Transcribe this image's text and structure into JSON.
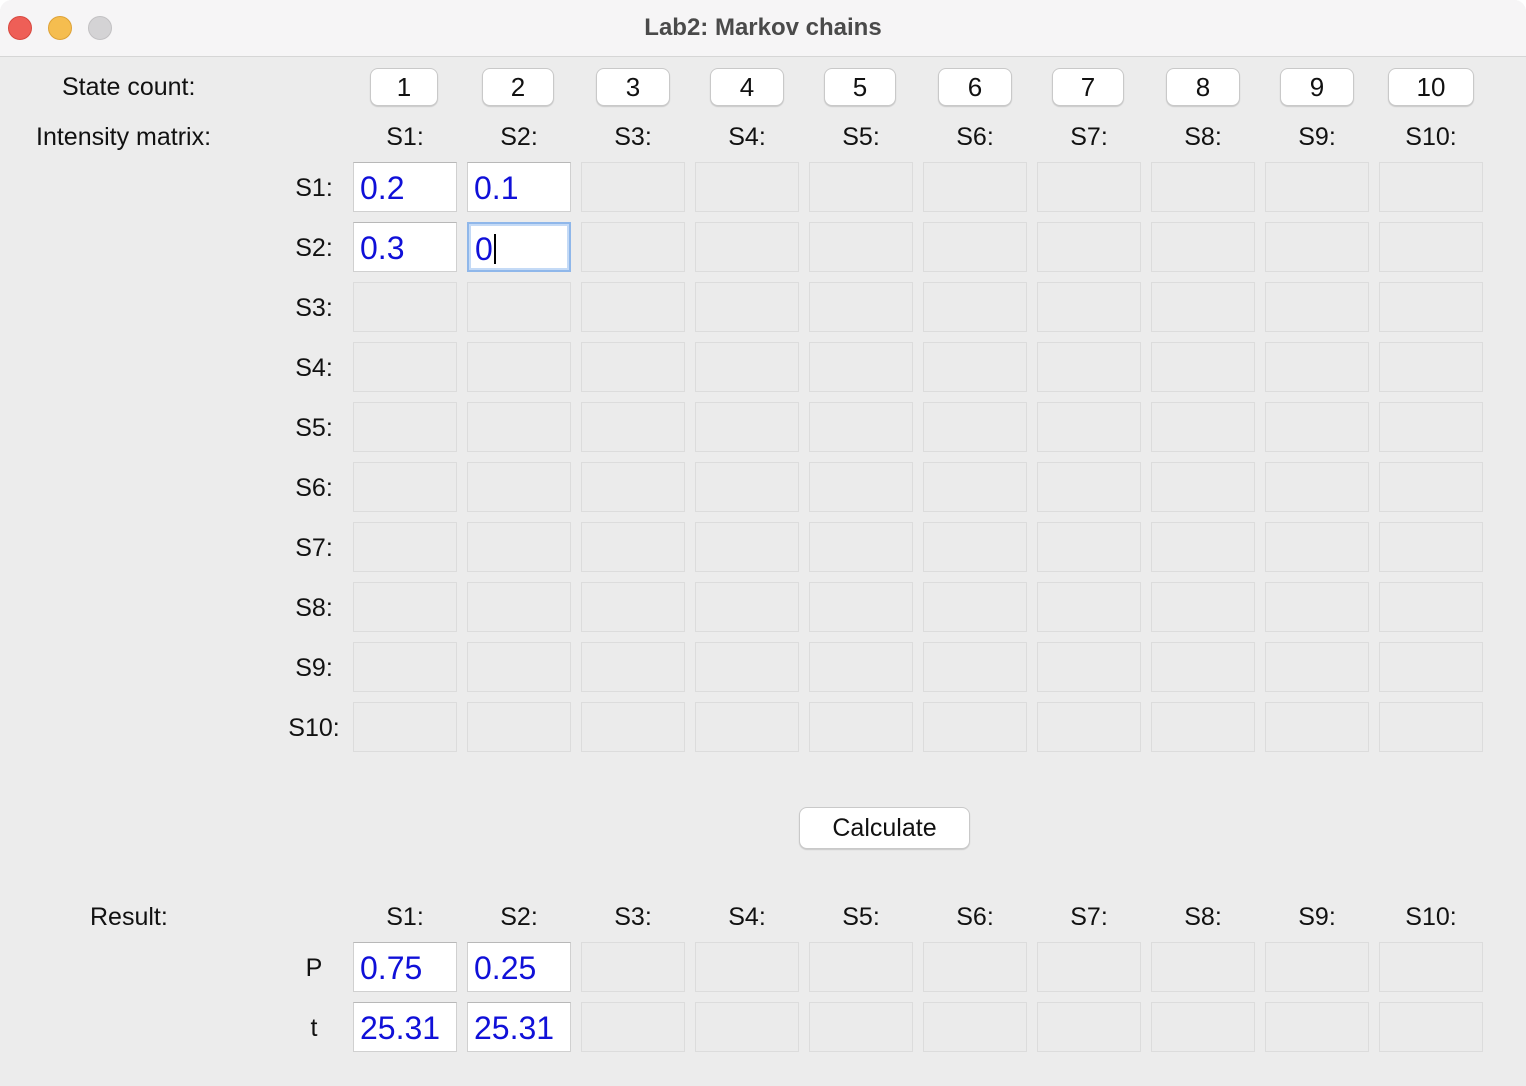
{
  "window": {
    "title": "Lab2: Markov chains"
  },
  "state_count": {
    "label": "State count:",
    "buttons": [
      "1",
      "2",
      "3",
      "4",
      "5",
      "6",
      "7",
      "8",
      "9",
      "10"
    ]
  },
  "matrix": {
    "label": "Intensity matrix:",
    "columns": [
      "S1:",
      "S2:",
      "S3:",
      "S4:",
      "S5:",
      "S6:",
      "S7:",
      "S8:",
      "S9:",
      "S10:"
    ],
    "rows": [
      "S1:",
      "S2:",
      "S3:",
      "S4:",
      "S5:",
      "S6:",
      "S7:",
      "S8:",
      "S9:",
      "S10:"
    ],
    "values": [
      [
        "0.2",
        "0.1",
        "",
        "",
        "",
        "",
        "",
        "",
        "",
        ""
      ],
      [
        "0.3",
        "0",
        "",
        "",
        "",
        "",
        "",
        "",
        "",
        ""
      ],
      [
        "",
        "",
        "",
        "",
        "",
        "",
        "",
        "",
        "",
        ""
      ],
      [
        "",
        "",
        "",
        "",
        "",
        "",
        "",
        "",
        "",
        ""
      ],
      [
        "",
        "",
        "",
        "",
        "",
        "",
        "",
        "",
        "",
        ""
      ],
      [
        "",
        "",
        "",
        "",
        "",
        "",
        "",
        "",
        "",
        ""
      ],
      [
        "",
        "",
        "",
        "",
        "",
        "",
        "",
        "",
        "",
        ""
      ],
      [
        "",
        "",
        "",
        "",
        "",
        "",
        "",
        "",
        "",
        ""
      ],
      [
        "",
        "",
        "",
        "",
        "",
        "",
        "",
        "",
        "",
        ""
      ],
      [
        "",
        "",
        "",
        "",
        "",
        "",
        "",
        "",
        "",
        ""
      ]
    ],
    "active_count": 2,
    "focused_cell": "S2,S2"
  },
  "calculate_label": "Calculate",
  "result": {
    "label": "Result:",
    "columns": [
      "S1:",
      "S2:",
      "S3:",
      "S4:",
      "S5:",
      "S6:",
      "S7:",
      "S8:",
      "S9:",
      "S10:"
    ],
    "rows": [
      "P",
      "t"
    ],
    "values": [
      [
        "0.75",
        "0.25",
        "",
        "",
        "",
        "",
        "",
        "",
        "",
        ""
      ],
      [
        "25.31",
        "25.31",
        "",
        "",
        "",
        "",
        "",
        "",
        "",
        ""
      ]
    ]
  },
  "colors": {
    "value_text": "#1010d8",
    "focus_ring": "#8fb7ea"
  }
}
